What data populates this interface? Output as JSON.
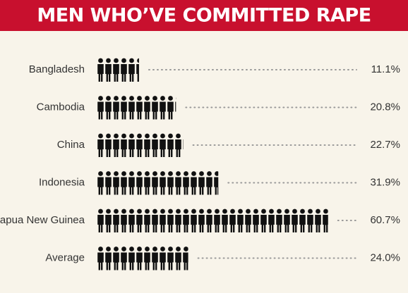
{
  "chart_data": {
    "type": "bar",
    "title": "MEN WHO’VE COMMITTED RAPE",
    "categories": [
      "Bangladesh",
      "Cambodia",
      "China",
      "Indonesia",
      "Papua New Guinea",
      "Average"
    ],
    "values": [
      11.1,
      20.8,
      22.7,
      31.9,
      60.7,
      24.0
    ],
    "value_labels": [
      "11.1%",
      "20.8%",
      "22.7%",
      "31.9%",
      "60.7%",
      "24.0%"
    ],
    "color": "#111111"
  }
}
